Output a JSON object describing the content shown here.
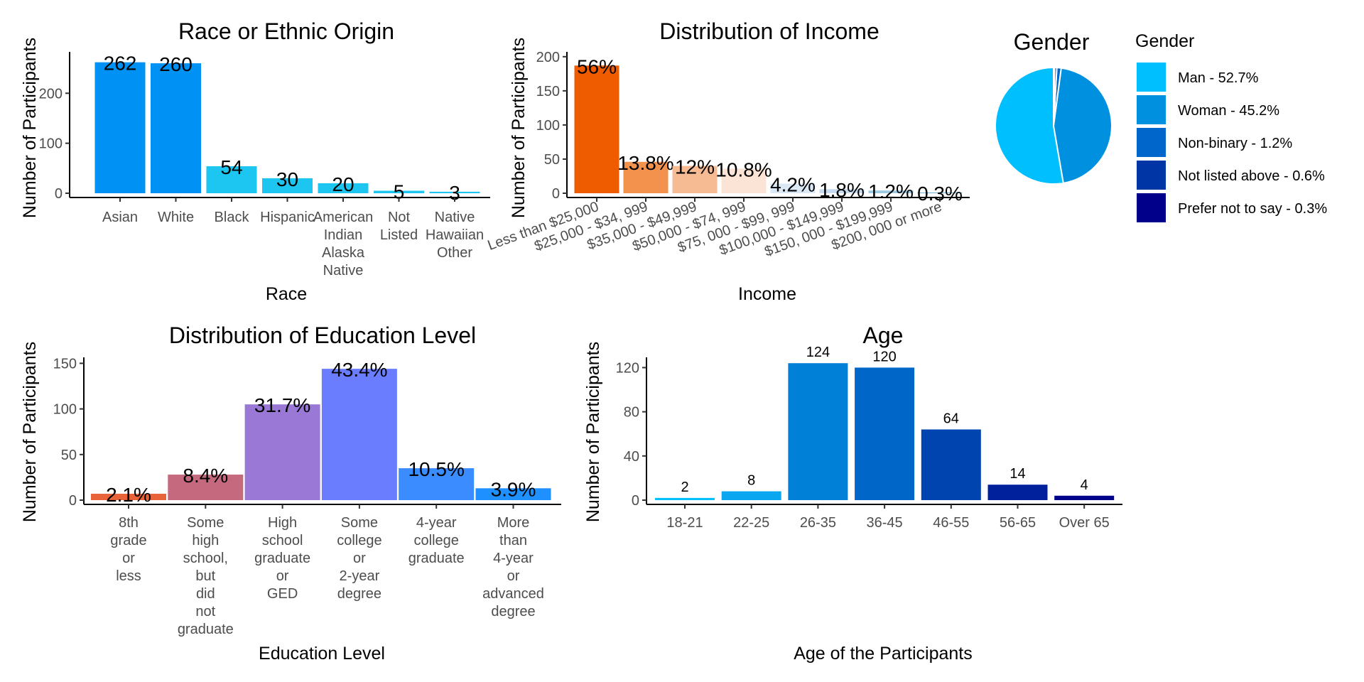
{
  "chart_data": [
    {
      "id": "race",
      "type": "bar",
      "title": "Race or Ethnic Origin",
      "xlabel": "Race",
      "ylabel": "Number of Participants",
      "ylim": [
        0,
        280
      ],
      "yticks": [
        0,
        100,
        200
      ],
      "categories": [
        [
          "Asian"
        ],
        [
          "White"
        ],
        [
          "Black"
        ],
        [
          "Hispanic"
        ],
        [
          "American",
          "Indian",
          "Alaska",
          "Native"
        ],
        [
          "Not",
          "Listed"
        ],
        [
          "Native",
          "Hawaiian",
          "Other"
        ]
      ],
      "values": [
        262,
        260,
        54,
        30,
        20,
        5,
        3
      ],
      "labels": [
        "262",
        "260",
        "54",
        "30",
        "20",
        "5",
        "3"
      ],
      "colors": [
        "#0091f5",
        "#0091f5",
        "#1cc6f0",
        "#1cc6f0",
        "#1cc6f0",
        "#1cc6f0",
        "#1cc6f0"
      ]
    },
    {
      "id": "income",
      "type": "bar",
      "title": "Distribution of Income",
      "xlabel": "Income",
      "ylabel": "Number of Participants",
      "ylim": [
        0,
        205
      ],
      "yticks": [
        0,
        50,
        100,
        150,
        200
      ],
      "categories": [
        "Less than $25,000",
        "$25,000 - $34, 999",
        "$35,000 - $49,999",
        "$50,000 - $74, 999",
        "$75, 000 - $99, 999",
        "$100,000 - $149,999",
        "$150, 000 - $199,999",
        "$200, 000 or more"
      ],
      "values": [
        187,
        46,
        40,
        36,
        14,
        6,
        4,
        1
      ],
      "labels": [
        "56%",
        "13.8%",
        "12%",
        "10.8%",
        "4.2%",
        "1.8%",
        "1.2%",
        "0.3%"
      ],
      "colors": [
        "#ef5c00",
        "#f2924d",
        "#f6bb93",
        "#fbe3d6",
        "#dbe9f6",
        "#c6dbef",
        "#9ecae1",
        "#6baed6"
      ]
    },
    {
      "id": "gender",
      "type": "pie",
      "title": "Gender",
      "legend_title": "Gender",
      "legend_position": "right",
      "categories": [
        "Man - 52.7%",
        "Woman - 45.2%",
        "Non-binary - 1.2%",
        "Not listed above - 0.6%",
        "Prefer not to say - 0.3%"
      ],
      "values": [
        52.7,
        45.2,
        1.2,
        0.6,
        0.3
      ],
      "colors": [
        "#00bfff",
        "#0090e0",
        "#0066cc",
        "#0035a6",
        "#00008b"
      ]
    },
    {
      "id": "education",
      "type": "bar",
      "title": "Distribution of Education Level",
      "xlabel": "Education Level",
      "ylabel": "Number of Participants",
      "ylim": [
        0,
        155
      ],
      "yticks": [
        0,
        50,
        100,
        150
      ],
      "categories": [
        [
          "8th",
          "grade",
          "or",
          "less"
        ],
        [
          "Some",
          "high",
          "school,",
          "but",
          "did",
          "not",
          "graduate"
        ],
        [
          "High",
          "school",
          "graduate",
          "or",
          "GED"
        ],
        [
          "Some",
          "college",
          "or",
          "2-year",
          "degree"
        ],
        [
          "4-year",
          "college",
          "graduate"
        ],
        [
          "More",
          "than",
          "4-year",
          "or",
          "advanced",
          "degree"
        ]
      ],
      "values": [
        7,
        28,
        105,
        144,
        35,
        13
      ],
      "labels": [
        "2.1%",
        "8.4%",
        "31.7%",
        "43.4%",
        "10.5%",
        "3.9%"
      ],
      "colors": [
        "#e8623a",
        "#c56a7e",
        "#9a79d6",
        "#6b7dff",
        "#3a8cff",
        "#1e90ff"
      ]
    },
    {
      "id": "age",
      "type": "bar",
      "title": "Age",
      "xlabel": "Age of the Participants",
      "ylabel": "Number of Participants",
      "ylim": [
        0,
        128
      ],
      "yticks": [
        0,
        40,
        80,
        120
      ],
      "categories": [
        [
          "18-21"
        ],
        [
          "22-25"
        ],
        [
          "26-35"
        ],
        [
          "36-45"
        ],
        [
          "46-55"
        ],
        [
          "56-65"
        ],
        [
          "Over 65"
        ]
      ],
      "values": [
        2,
        8,
        124,
        120,
        64,
        14,
        4
      ],
      "labels": [
        "2",
        "8",
        "124",
        "120",
        "64",
        "14",
        "4"
      ],
      "colors": [
        "#00bfff",
        "#0aa6f0",
        "#0080d6",
        "#0066c8",
        "#0044b0",
        "#00219b",
        "#00008b"
      ]
    }
  ]
}
